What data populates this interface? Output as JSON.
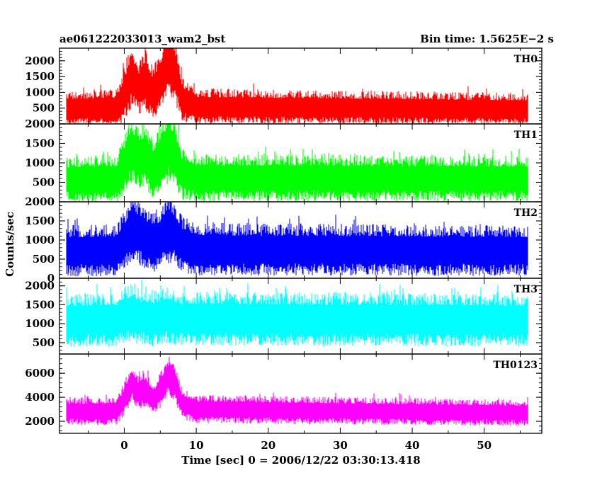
{
  "chart_data": {
    "type": "line",
    "title_left": "ae061222033013_wam2_bst",
    "title_right": "Bin time: 1.5625E−2 s",
    "xlabel": "Time [sec] 0 = 2006/12/22 03:30:13.418",
    "ylabel": "Counts/sec",
    "xlim": [
      -9,
      58
    ],
    "x_ticks": [
      0,
      10,
      20,
      30,
      40,
      50
    ],
    "x_tick_labels": [
      "0",
      "10",
      "20",
      "30",
      "40",
      "50"
    ],
    "data_x_range": [
      -8,
      56
    ],
    "bin_time": 0.015625,
    "grid": false,
    "panels": [
      {
        "name": "TH0",
        "color": "#ff0000",
        "ylim": [
          0,
          2400
        ],
        "y_ticks": [
          0,
          500,
          1000,
          1500,
          2000
        ],
        "y_tick_labels": [
          "0",
          "500",
          "1000",
          "1500",
          "2000"
        ],
        "profile": [
          [
            -8,
            450
          ],
          [
            -1,
            480
          ],
          [
            0,
            900
          ],
          [
            1,
            1500
          ],
          [
            2,
            1100
          ],
          [
            3,
            1300
          ],
          [
            4,
            950
          ],
          [
            5,
            1300
          ],
          [
            6,
            1900
          ],
          [
            7,
            1700
          ],
          [
            8,
            750
          ],
          [
            10,
            520
          ],
          [
            56,
            430
          ]
        ],
        "spread": [
          [
            -8,
            600
          ],
          [
            -1,
            650
          ],
          [
            0,
            900
          ],
          [
            1,
            1100
          ],
          [
            2,
            900
          ],
          [
            3,
            1000
          ],
          [
            4,
            850
          ],
          [
            5,
            1000
          ],
          [
            6,
            1200
          ],
          [
            7,
            1100
          ],
          [
            8,
            750
          ],
          [
            10,
            600
          ],
          [
            56,
            560
          ]
        ],
        "floor": 10
      },
      {
        "name": "TH1",
        "color": "#00ff00",
        "ylim": [
          0,
          2000
        ],
        "y_ticks": [
          0,
          500,
          1000,
          1500,
          2000
        ],
        "y_tick_labels": [
          "0",
          "500",
          "1000",
          "1500",
          "2000"
        ],
        "profile": [
          [
            -8,
            540
          ],
          [
            -1,
            560
          ],
          [
            0,
            900
          ],
          [
            1,
            1300
          ],
          [
            2,
            1100
          ],
          [
            3,
            1150
          ],
          [
            4,
            800
          ],
          [
            5,
            1100
          ],
          [
            6,
            1350
          ],
          [
            7,
            1250
          ],
          [
            8,
            700
          ],
          [
            10,
            580
          ],
          [
            56,
            560
          ]
        ],
        "spread": [
          [
            -8,
            620
          ],
          [
            -1,
            650
          ],
          [
            0,
            800
          ],
          [
            1,
            900
          ],
          [
            2,
            850
          ],
          [
            3,
            900
          ],
          [
            4,
            800
          ],
          [
            5,
            900
          ],
          [
            6,
            1000
          ],
          [
            7,
            950
          ],
          [
            8,
            720
          ],
          [
            10,
            650
          ],
          [
            56,
            620
          ]
        ],
        "floor": 10
      },
      {
        "name": "TH2",
        "color": "#0000ff",
        "ylim": [
          0,
          2000
        ],
        "y_ticks": [
          0,
          500,
          1000,
          1500,
          2000
        ],
        "y_tick_labels": [
          "0",
          "500",
          "1000",
          "1500",
          "2000"
        ],
        "profile": [
          [
            -8,
            680
          ],
          [
            -1,
            700
          ],
          [
            0,
            900
          ],
          [
            1,
            1300
          ],
          [
            2,
            1150
          ],
          [
            3,
            1000
          ],
          [
            4,
            900
          ],
          [
            5,
            1000
          ],
          [
            6,
            1250
          ],
          [
            7,
            1150
          ],
          [
            8,
            850
          ],
          [
            10,
            720
          ],
          [
            56,
            690
          ]
        ],
        "spread": [
          [
            -8,
            700
          ],
          [
            -1,
            720
          ],
          [
            0,
            820
          ],
          [
            1,
            950
          ],
          [
            2,
            900
          ],
          [
            3,
            850
          ],
          [
            4,
            820
          ],
          [
            5,
            850
          ],
          [
            6,
            950
          ],
          [
            7,
            900
          ],
          [
            8,
            780
          ],
          [
            10,
            730
          ],
          [
            56,
            700
          ]
        ],
        "floor": 10
      },
      {
        "name": "TH3",
        "color": "#00ffff",
        "ylim": [
          200,
          2200
        ],
        "y_ticks": [
          500,
          1000,
          1500,
          2000
        ],
        "y_tick_labels": [
          "500",
          "1000",
          "1500",
          "2000"
        ],
        "profile": [
          [
            -8,
            1050
          ],
          [
            -1,
            1080
          ],
          [
            0,
            1200
          ],
          [
            1,
            1250
          ],
          [
            2,
            1150
          ],
          [
            3,
            1150
          ],
          [
            4,
            1100
          ],
          [
            5,
            1150
          ],
          [
            6,
            1200
          ],
          [
            7,
            1150
          ],
          [
            8,
            1100
          ],
          [
            56,
            1060
          ]
        ],
        "spread": [
          [
            -8,
            740
          ],
          [
            -1,
            750
          ],
          [
            0,
            800
          ],
          [
            1,
            820
          ],
          [
            2,
            780
          ],
          [
            5,
            790
          ],
          [
            6,
            810
          ],
          [
            8,
            760
          ],
          [
            56,
            740
          ]
        ],
        "floor": 230
      },
      {
        "name": "TH0123",
        "color": "#ff00ff",
        "ylim": [
          1000,
          7600
        ],
        "y_ticks": [
          2000,
          4000,
          6000
        ],
        "y_tick_labels": [
          "2000",
          "4000",
          "6000"
        ],
        "profile": [
          [
            -8,
            2750
          ],
          [
            -1,
            2800
          ],
          [
            0,
            3800
          ],
          [
            1,
            5200
          ],
          [
            2,
            4300
          ],
          [
            3,
            4600
          ],
          [
            4,
            3700
          ],
          [
            5,
            4500
          ],
          [
            6,
            5700
          ],
          [
            7,
            5300
          ],
          [
            8,
            3400
          ],
          [
            10,
            2950
          ],
          [
            56,
            2650
          ]
        ],
        "spread": [
          [
            -8,
            1200
          ],
          [
            -1,
            1250
          ],
          [
            0,
            1500
          ],
          [
            1,
            1700
          ],
          [
            2,
            1500
          ],
          [
            3,
            1600
          ],
          [
            4,
            1400
          ],
          [
            5,
            1600
          ],
          [
            6,
            1800
          ],
          [
            7,
            1700
          ],
          [
            8,
            1350
          ],
          [
            10,
            1250
          ],
          [
            56,
            1150
          ]
        ],
        "floor": 1050
      }
    ]
  }
}
